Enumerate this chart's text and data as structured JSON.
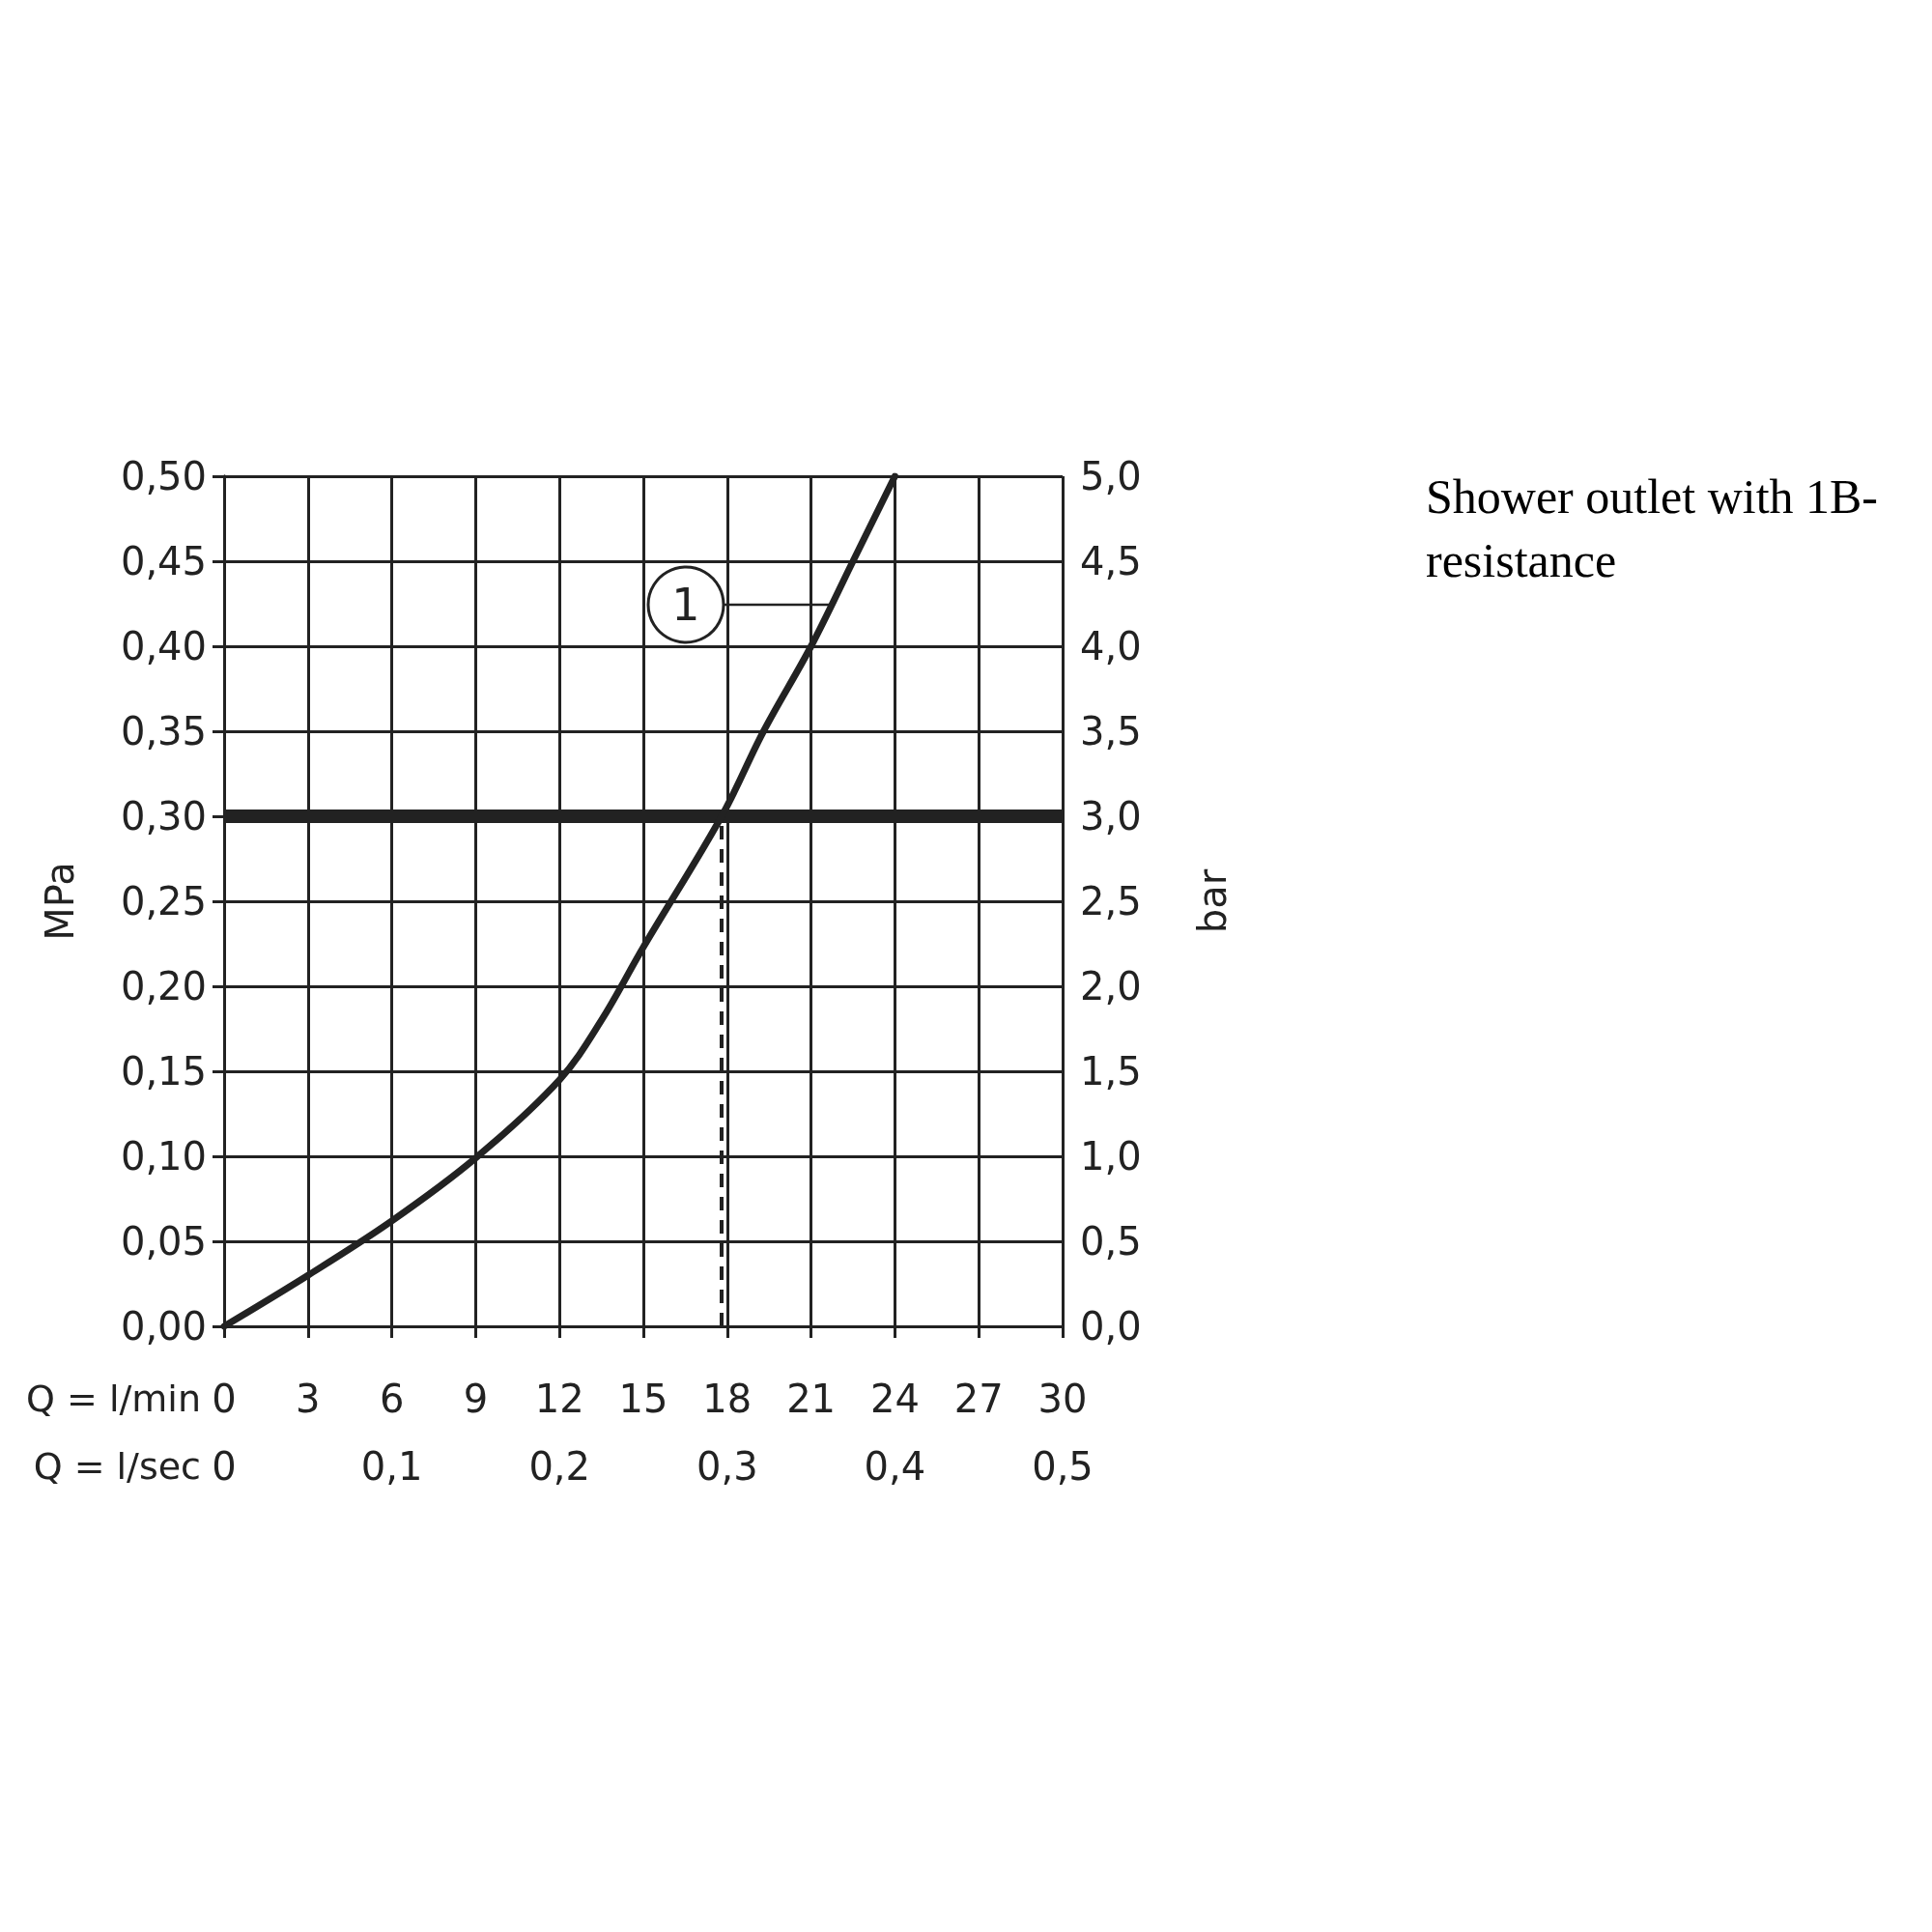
{
  "chart_data": {
    "type": "line",
    "title": "Shower outlet with 1B-resistance",
    "xlabel": "Q = l/min",
    "x2label": "Q = l/sec",
    "ylabel": "MPa",
    "y2label": "bar",
    "x": [
      0,
      3,
      6,
      9,
      12,
      13.5,
      15,
      17.8,
      19.3,
      21,
      22.5,
      24
    ],
    "series": [
      {
        "color": "#222222",
        "values": [
          0,
          0.03,
          0.062,
          0.099,
          0.145,
          0.18,
          0.223,
          0.3,
          0.35,
          0.4,
          0.45,
          0.5
        ]
      }
    ],
    "xlim": [
      0,
      30
    ],
    "xticks": [
      0,
      3,
      6,
      9,
      12,
      15,
      18,
      21,
      24,
      27,
      30
    ],
    "x2lim": [
      0,
      0.5
    ],
    "x2ticks": [
      0,
      {
        "value": 0.1,
        "label": "0,1"
      },
      {
        "value": 0.2,
        "label": "0,2"
      },
      {
        "value": 0.3,
        "label": "0,3"
      },
      {
        "value": 0.4,
        "label": "0,4"
      },
      {
        "value": 0.5,
        "label": "0,5"
      }
    ],
    "ylim": [
      0,
      0.5
    ],
    "yticks": [
      {
        "value": 0,
        "label": "0,00"
      },
      {
        "value": 0.05,
        "label": "0,05"
      },
      {
        "value": 0.1,
        "label": "0,10"
      },
      {
        "value": 0.15,
        "label": "0,15"
      },
      {
        "value": 0.2,
        "label": "0,20"
      },
      {
        "value": 0.25,
        "label": "0,25"
      },
      {
        "value": 0.3,
        "label": "0,30"
      },
      {
        "value": 0.35,
        "label": "0,35"
      },
      {
        "value": 0.4,
        "label": "0,40"
      },
      {
        "value": 0.45,
        "label": "0,45"
      },
      {
        "value": 0.5,
        "label": "0,50"
      }
    ],
    "y2lim": [
      0,
      5
    ],
    "y2ticks": [
      {
        "value": 0,
        "label": "0,0"
      },
      {
        "value": 0.5,
        "label": "0,5"
      },
      {
        "value": 1,
        "label": "1,0"
      },
      {
        "value": 1.5,
        "label": "1,5"
      },
      {
        "value": 2,
        "label": "2,0"
      },
      {
        "value": 2.5,
        "label": "2,5"
      },
      {
        "value": 3,
        "label": "3,0"
      },
      {
        "value": 3.5,
        "label": "3,5"
      },
      {
        "value": 4,
        "label": "4,0"
      },
      {
        "value": 4.5,
        "label": "4,5"
      },
      {
        "value": 5,
        "label": "5,0"
      }
    ],
    "ref_lines": [
      {
        "axis": "y",
        "value": 0.3,
        "color": "#222222",
        "line_style": "solid"
      },
      {
        "axis": "x",
        "value": 17.8,
        "color": "#222222",
        "line_style": "dashed"
      }
    ],
    "annotations": [
      "1"
    ],
    "grid": true,
    "marker": "none",
    "line_style": "solid"
  }
}
